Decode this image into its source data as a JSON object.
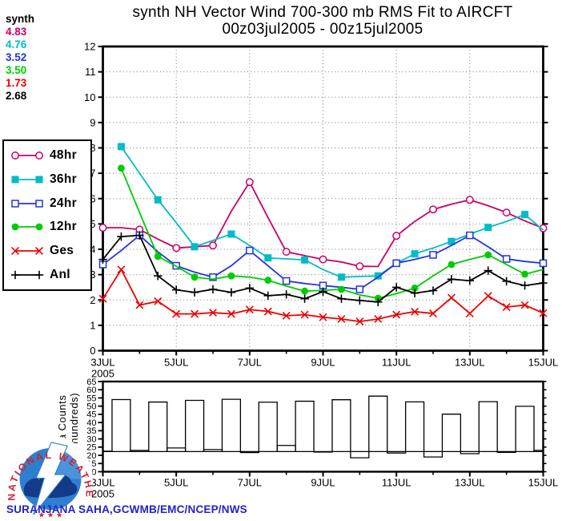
{
  "header": {
    "title_line1": "synth NH Vector Wind 700-300 mb RMS Fit to AIRCFT",
    "title_line2": "00z03jul2005 - 00z15jul2005"
  },
  "stats_legend": {
    "label": "synth",
    "values": [
      {
        "text": "4.83",
        "color": "#cc0066"
      },
      {
        "text": "4.76",
        "color": "#00bcc6"
      },
      {
        "text": "3.52",
        "color": "#2233dd"
      },
      {
        "text": "3.50",
        "color": "#00cc00"
      },
      {
        "text": "1.73",
        "color": "#ee0000"
      },
      {
        "text": "2.68",
        "color": "#000000"
      }
    ]
  },
  "legend": {
    "items": [
      {
        "label": "48hr"
      },
      {
        "label": "36hr"
      },
      {
        "label": "24hr"
      },
      {
        "label": "12hr"
      },
      {
        "label": "Ges"
      },
      {
        "label": "Anl"
      }
    ]
  },
  "footer": {
    "credit": "SURANJANA SAHA,GCWMB/EMC/NCEP/NWS",
    "credit_color": "#2222cc"
  },
  "logo": {
    "ring_text": "NATIONAL WEATHER SERVICE",
    "stars": "★ ★ ★",
    "ring_color": "#cc2233",
    "disc_color": "#2e7fd0",
    "cloud_color": "#143a8a"
  },
  "chart_data": [
    {
      "type": "line",
      "title": "synth NH Vector Wind 700-300 mb RMS Fit to AIRCFT",
      "subtitle": "00z03jul2005 - 00z15jul2005",
      "x_unit": "twice-daily (00z/12z) points from 00z03jul2005 to 00z15jul2005",
      "ylim": [
        0,
        12
      ],
      "ytick_step": 1,
      "grid": "dotted",
      "x_ticks": [
        {
          "t": 0,
          "label": "3JUL",
          "sub": "2005"
        },
        {
          "t": 4,
          "label": "5JUL"
        },
        {
          "t": 8,
          "label": "7JUL"
        },
        {
          "t": 12,
          "label": "9JUL"
        },
        {
          "t": 16,
          "label": "11JUL"
        },
        {
          "t": 20,
          "label": "13JUL"
        },
        {
          "t": 24,
          "label": "15JUL"
        }
      ],
      "x_minor_ticks": [
        2,
        6,
        10,
        14,
        18,
        22
      ],
      "x_gridlines": [
        4,
        8,
        12,
        16,
        20
      ],
      "series": [
        {
          "name": "48hr",
          "color": "#cc0066",
          "marker": "circle-open",
          "marker_phase": "even",
          "values": [
            4.85,
            4.85,
            4.78,
            4.4,
            4.05,
            4.1,
            4.15,
            5.5,
            6.65,
            5.25,
            3.9,
            3.75,
            3.6,
            3.5,
            3.33,
            3.32,
            4.53,
            5.1,
            5.57,
            5.78,
            5.95,
            5.72,
            5.45,
            5.12,
            4.83
          ]
        },
        {
          "name": "36hr",
          "color": "#00bcc6",
          "marker": "square-filled",
          "marker_phase": "odd",
          "values": [
            null,
            8.05,
            7.0,
            5.95,
            5.05,
            4.1,
            4.35,
            4.6,
            4.15,
            3.66,
            3.62,
            3.58,
            3.2,
            2.9,
            2.93,
            2.95,
            3.45,
            3.82,
            4.05,
            4.31,
            4.6,
            4.86,
            5.1,
            5.37,
            4.76
          ]
        },
        {
          "name": "24hr",
          "color": "#2233dd",
          "marker": "square-open",
          "marker_phase": "even",
          "values": [
            3.4,
            3.95,
            4.55,
            3.9,
            3.35,
            3.1,
            2.9,
            3.35,
            3.95,
            3.35,
            2.75,
            2.65,
            2.57,
            2.5,
            2.42,
            2.9,
            3.45,
            3.6,
            3.78,
            4.15,
            4.55,
            4.1,
            3.62,
            3.52,
            3.45
          ]
        },
        {
          "name": "12hr",
          "color": "#00cc00",
          "marker": "circle-filled",
          "marker_phase": "odd",
          "values": [
            null,
            7.2,
            5.45,
            3.72,
            3.33,
            2.9,
            2.82,
            2.95,
            2.9,
            2.78,
            2.55,
            2.35,
            2.38,
            2.42,
            2.2,
            2.07,
            2.25,
            2.47,
            2.95,
            3.4,
            3.6,
            3.78,
            3.4,
            3.02,
            3.2
          ]
        },
        {
          "name": "Ges",
          "color": "#ee0000",
          "marker": "x",
          "marker_phase": "all",
          "values": [
            2.05,
            3.2,
            1.8,
            1.95,
            1.45,
            1.45,
            1.5,
            1.45,
            1.62,
            1.55,
            1.38,
            1.42,
            1.32,
            1.25,
            1.15,
            1.25,
            1.42,
            1.54,
            1.47,
            2.09,
            1.47,
            2.16,
            1.72,
            1.8,
            1.48
          ]
        },
        {
          "name": "Anl",
          "color": "#000000",
          "marker": "plus",
          "marker_phase": "all",
          "values": [
            3.6,
            4.5,
            4.55,
            2.95,
            2.4,
            2.3,
            2.42,
            2.3,
            2.47,
            2.17,
            2.22,
            2.05,
            2.33,
            2.05,
            1.98,
            1.92,
            2.5,
            2.27,
            2.37,
            2.82,
            2.76,
            3.16,
            2.74,
            2.57,
            2.67
          ]
        }
      ]
    },
    {
      "type": "bar",
      "ylabel_line1": "Data Counts",
      "ylabel_line2": "(in hundreds)",
      "ylim": [
        10,
        65
      ],
      "ytick_step": 5,
      "baseline": 22.3,
      "x_ticks": [
        {
          "t": 0,
          "label": "3JUL",
          "sub": "2005"
        },
        {
          "t": 4,
          "label": "5JUL"
        },
        {
          "t": 8,
          "label": "7JUL"
        },
        {
          "t": 12,
          "label": "9JUL"
        },
        {
          "t": 16,
          "label": "11JUL"
        },
        {
          "t": 20,
          "label": "13JUL"
        },
        {
          "t": 24,
          "label": "15JUL"
        }
      ],
      "x_minor_ticks": [
        2,
        6,
        10,
        14,
        18,
        22
      ],
      "values": [
        22.5,
        54.0,
        23.0,
        52.5,
        24.5,
        53.5,
        23.5,
        54.2,
        21.7,
        52.4,
        26.0,
        53.0,
        22.0,
        53.9,
        18.5,
        56.1,
        21.4,
        52.6,
        19.0,
        45.1,
        21.0,
        52.7,
        21.8,
        49.9,
        23.0
      ]
    }
  ]
}
